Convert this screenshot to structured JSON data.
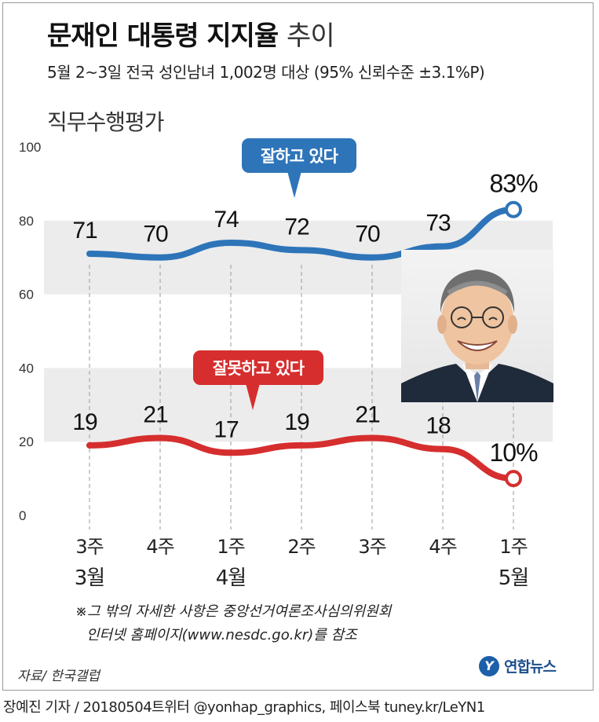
{
  "header": {
    "title_bold": "문재인 대통령 지지율",
    "title_light": "추이",
    "subtitle": "5월 2~3일 전국 성인남녀 1,002명 대상 (95% 신뢰수준 ±3.1%P)",
    "section": "직무수행평가"
  },
  "chart_data": {
    "type": "line",
    "categories": [
      "3주 3월",
      "4주",
      "1주 4월",
      "2주",
      "3주",
      "4주",
      "1주 5월"
    ],
    "x_tick_top": [
      "3주",
      "4주",
      "1주",
      "2주",
      "3주",
      "4주",
      "1주"
    ],
    "x_tick_bottom": [
      "3월",
      "",
      "4월",
      "",
      "",
      "",
      "5월"
    ],
    "ylim": [
      0,
      100
    ],
    "yticks": [
      "0",
      "20",
      "40",
      "60",
      "80",
      "100"
    ],
    "grid": "alternating horizontal bands",
    "series": [
      {
        "name": "잘하고 있다",
        "color": "#2e74b9",
        "values": [
          71,
          70,
          74,
          72,
          70,
          73,
          83
        ],
        "labels": [
          "71",
          "70",
          "74",
          "72",
          "70",
          "73",
          "83%"
        ]
      },
      {
        "name": "잘못하고 있다",
        "color": "#d62e2e",
        "values": [
          19,
          21,
          17,
          19,
          21,
          18,
          10
        ],
        "labels": [
          "19",
          "21",
          "17",
          "19",
          "21",
          "18",
          "10%"
        ]
      }
    ]
  },
  "footer": {
    "note_line1": "※그 밖의 자세한 사항은 중앙선거여론조사심의위원회",
    "note_line2": "인터넷 홈페이지(www.nesdc.go.kr)를 참조",
    "source": "자료/ 한국갤럽",
    "logo_mark": "Y",
    "logo_text": "연합뉴스",
    "credit": "장예진 기자 / 20180504트위터 @yonhap_graphics, 페이스북 tuney.kr/LeYN1"
  }
}
